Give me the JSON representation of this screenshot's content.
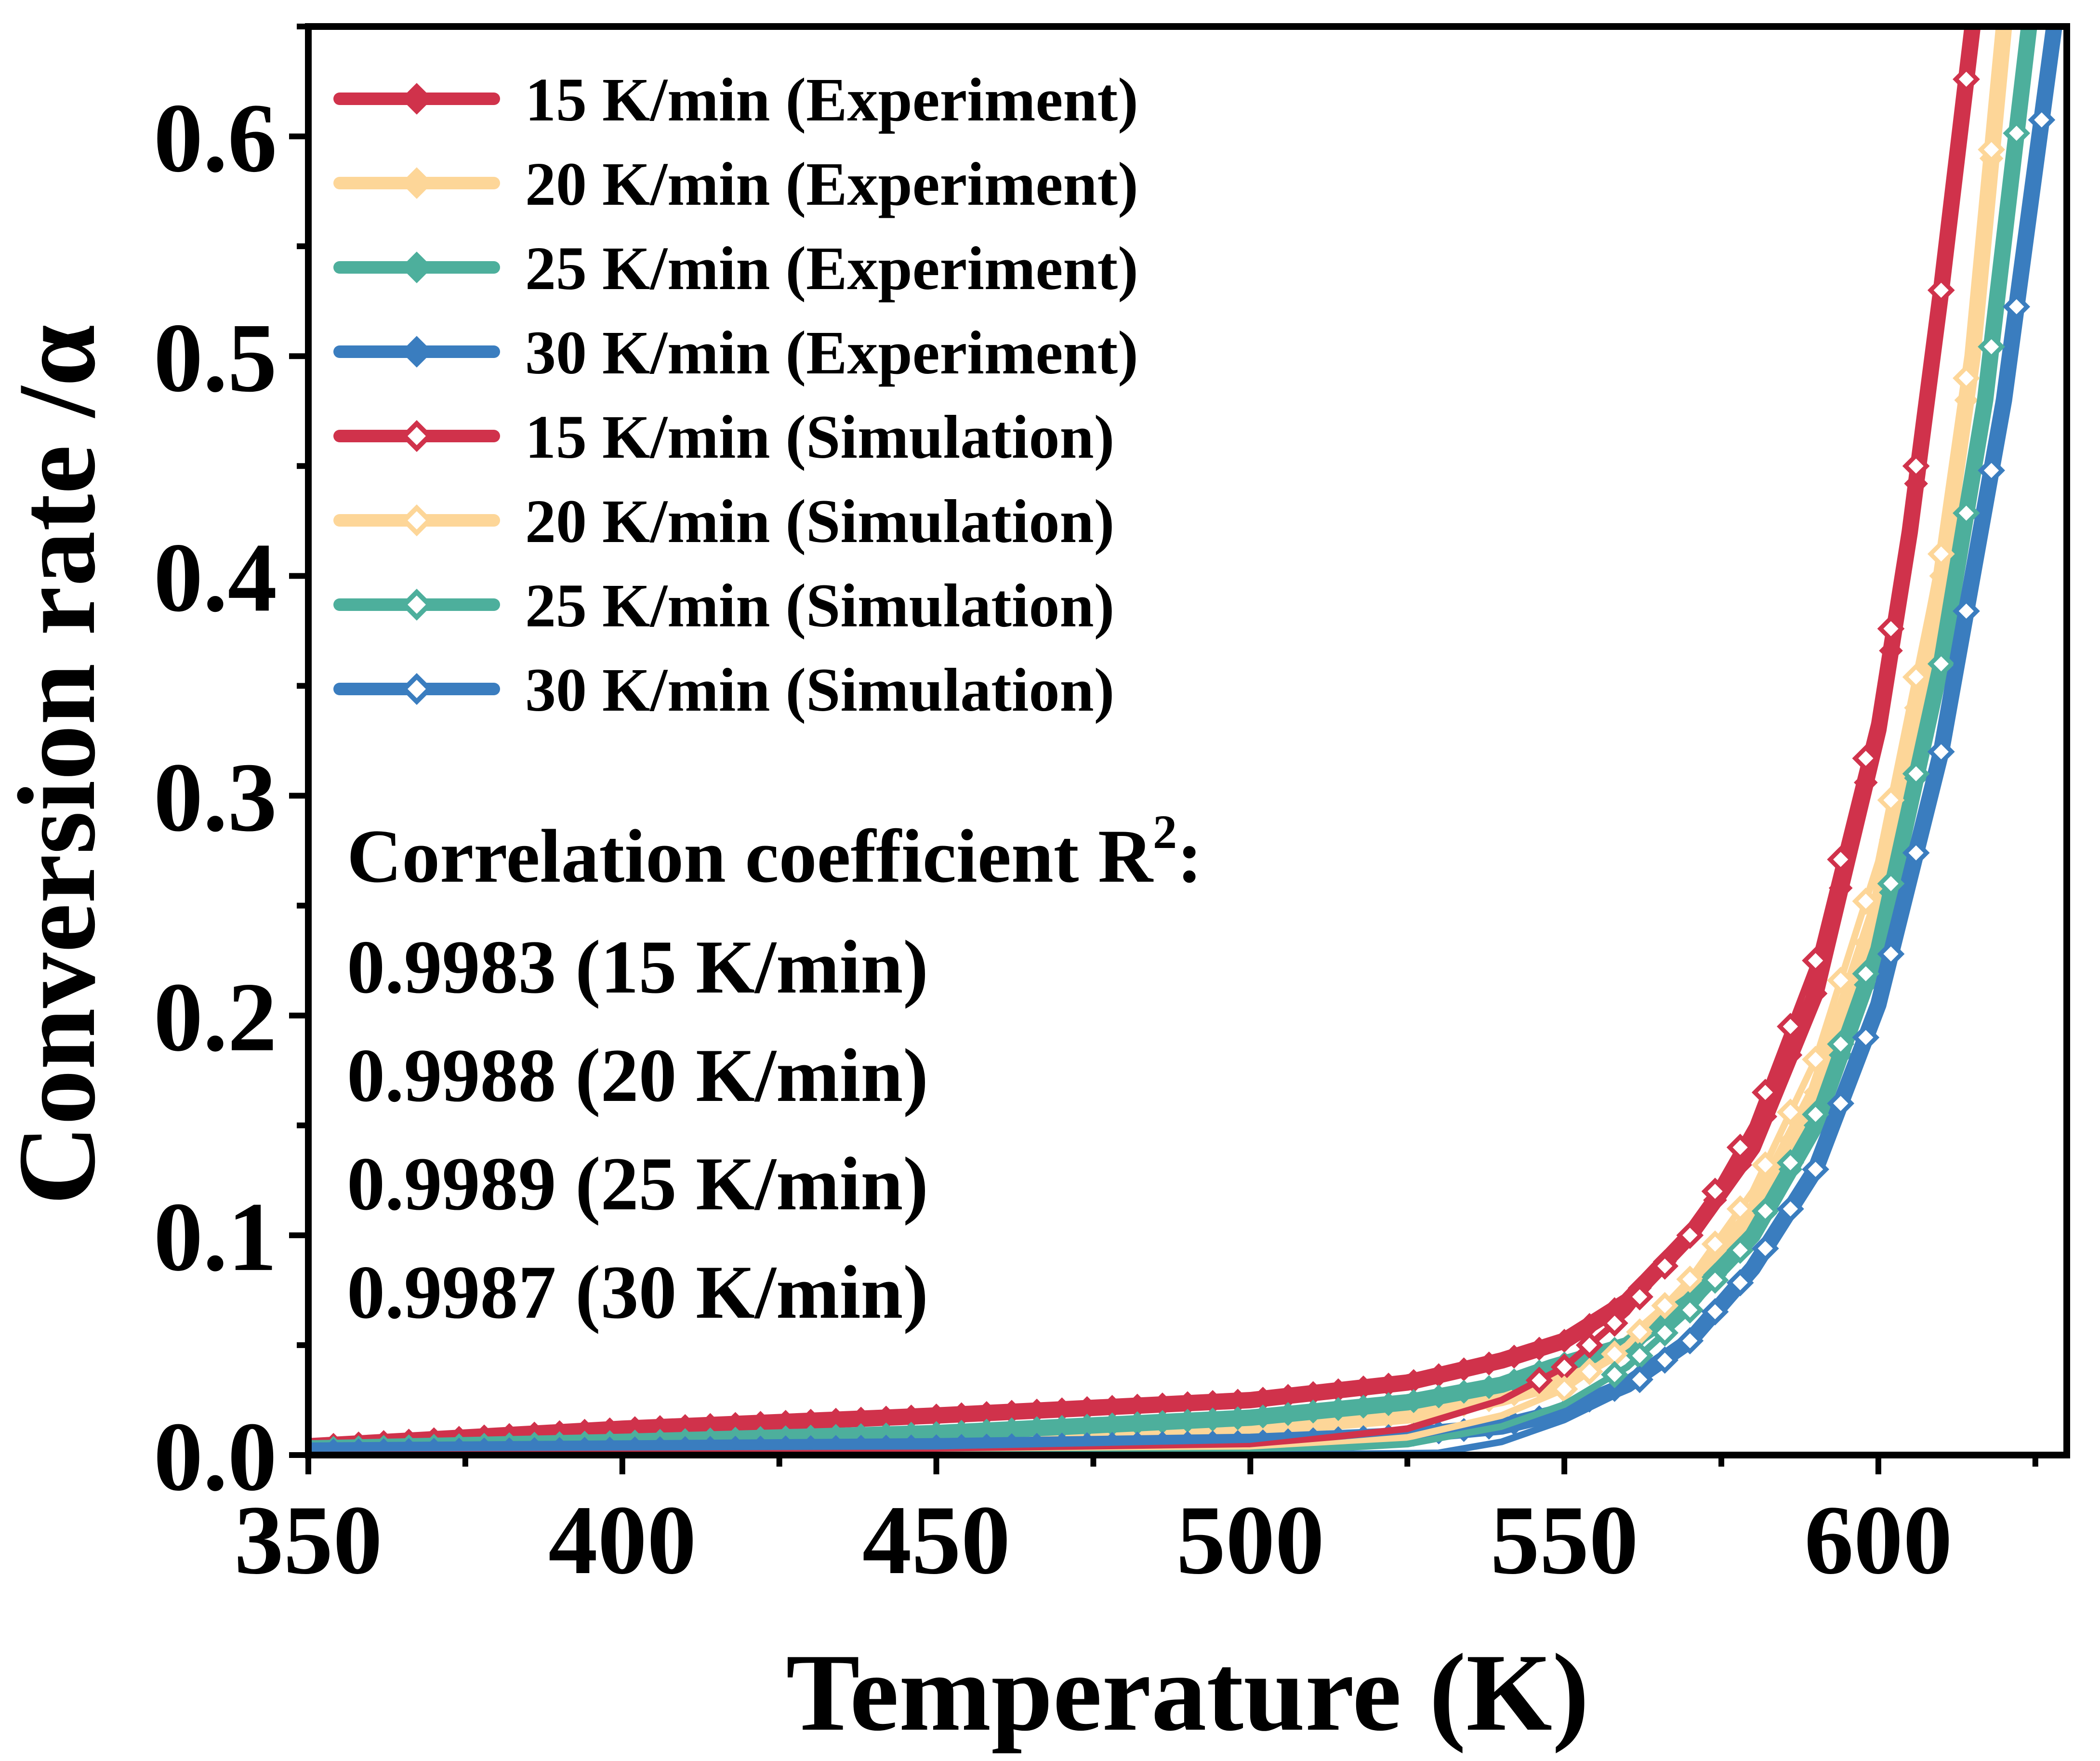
{
  "chart_data": {
    "type": "line",
    "title": "",
    "xlabel": "Temperature (K)",
    "ylabel": "Conversion rate /α",
    "xlim": [
      350,
      630
    ],
    "ylim": [
      0,
      0.65
    ],
    "xticks": [
      350,
      400,
      450,
      500,
      550,
      600
    ],
    "xtick_labels": [
      "350",
      "400",
      "450",
      "500",
      "550",
      "600"
    ],
    "yticks": [
      0.0,
      0.1,
      0.2,
      0.3,
      0.4,
      0.5,
      0.6
    ],
    "ytick_labels": [
      "0.0",
      "0.1",
      "0.2",
      "0.3",
      "0.4",
      "0.5",
      "0.6"
    ],
    "grid": false,
    "legend_position": "top-left",
    "series": [
      {
        "name": "15 K/min (Experiment)",
        "color": "#d0324b",
        "marker": "diamond-filled",
        "x": [
          350,
          400,
          450,
          500,
          525,
          540,
          550,
          560,
          570,
          580,
          590,
          600,
          605,
          610,
          615
        ],
        "y": [
          0.004,
          0.012,
          0.018,
          0.025,
          0.033,
          0.043,
          0.052,
          0.07,
          0.1,
          0.14,
          0.21,
          0.33,
          0.42,
          0.53,
          0.65
        ]
      },
      {
        "name": "20 K/min (Experiment)",
        "color": "#fdd698",
        "marker": "diamond-filled",
        "x": [
          350,
          400,
          450,
          500,
          525,
          540,
          550,
          560,
          570,
          580,
          590,
          600,
          610,
          615,
          620
        ],
        "y": [
          0.003,
          0.005,
          0.008,
          0.012,
          0.018,
          0.026,
          0.034,
          0.05,
          0.075,
          0.11,
          0.165,
          0.25,
          0.4,
          0.5,
          0.65
        ]
      },
      {
        "name": "25 K/min (Experiment)",
        "color": "#4daf9c",
        "marker": "diamond-filled",
        "x": [
          350,
          400,
          450,
          500,
          525,
          540,
          548,
          560,
          570,
          580,
          590,
          600,
          610,
          617,
          624
        ],
        "y": [
          0.003,
          0.006,
          0.01,
          0.017,
          0.024,
          0.032,
          0.04,
          0.05,
          0.07,
          0.1,
          0.15,
          0.23,
          0.36,
          0.48,
          0.65
        ]
      },
      {
        "name": "30 K/min (Experiment)",
        "color": "#3a7dbf",
        "marker": "diamond-filled",
        "x": [
          350,
          400,
          450,
          500,
          525,
          540,
          550,
          560,
          570,
          580,
          590,
          600,
          610,
          620,
          628
        ],
        "y": [
          0.002,
          0.003,
          0.004,
          0.006,
          0.009,
          0.013,
          0.02,
          0.032,
          0.052,
          0.085,
          0.13,
          0.205,
          0.32,
          0.48,
          0.65
        ]
      },
      {
        "name": "15 K/min (Simulation)",
        "color": "#d0324b",
        "marker": "diamond-open",
        "x": [
          350,
          450,
          500,
          525,
          540,
          550,
          560,
          570,
          580,
          590,
          600,
          605,
          610,
          615
        ],
        "y": [
          0.0,
          0.001,
          0.004,
          0.012,
          0.025,
          0.04,
          0.065,
          0.1,
          0.15,
          0.225,
          0.34,
          0.43,
          0.53,
          0.65
        ]
      },
      {
        "name": "20 K/min (Simulation)",
        "color": "#fdd698",
        "marker": "diamond-open",
        "x": [
          350,
          450,
          500,
          525,
          540,
          550,
          560,
          570,
          580,
          590,
          600,
          610,
          615,
          620
        ],
        "y": [
          0.0,
          0.0,
          0.002,
          0.008,
          0.018,
          0.03,
          0.05,
          0.08,
          0.12,
          0.18,
          0.27,
          0.41,
          0.51,
          0.65
        ]
      },
      {
        "name": "25 K/min (Simulation)",
        "color": "#4daf9c",
        "marker": "diamond-open",
        "x": [
          350,
          450,
          500,
          525,
          540,
          550,
          560,
          570,
          580,
          590,
          600,
          610,
          617,
          624
        ],
        "y": [
          0.0,
          0.0,
          0.001,
          0.005,
          0.013,
          0.023,
          0.04,
          0.066,
          0.1,
          0.155,
          0.235,
          0.36,
          0.48,
          0.65
        ]
      },
      {
        "name": "30 K/min (Simulation)",
        "color": "#3a7dbf",
        "marker": "diamond-open",
        "x": [
          350,
          450,
          500,
          530,
          540,
          550,
          560,
          570,
          580,
          590,
          600,
          610,
          620,
          628
        ],
        "y": [
          0.0,
          0.0,
          0.0,
          0.001,
          0.006,
          0.016,
          0.03,
          0.052,
          0.085,
          0.13,
          0.205,
          0.32,
          0.48,
          0.65
        ]
      }
    ],
    "annotation": {
      "heading": "Correlation coefficient R",
      "superscript": "2",
      "suffix": ":",
      "lines": [
        "0.9983 (15 K/min)",
        "0.9988 (20 K/min)",
        "0.9989 (25 K/min)",
        "0.9987 (30 K/min)"
      ]
    }
  }
}
